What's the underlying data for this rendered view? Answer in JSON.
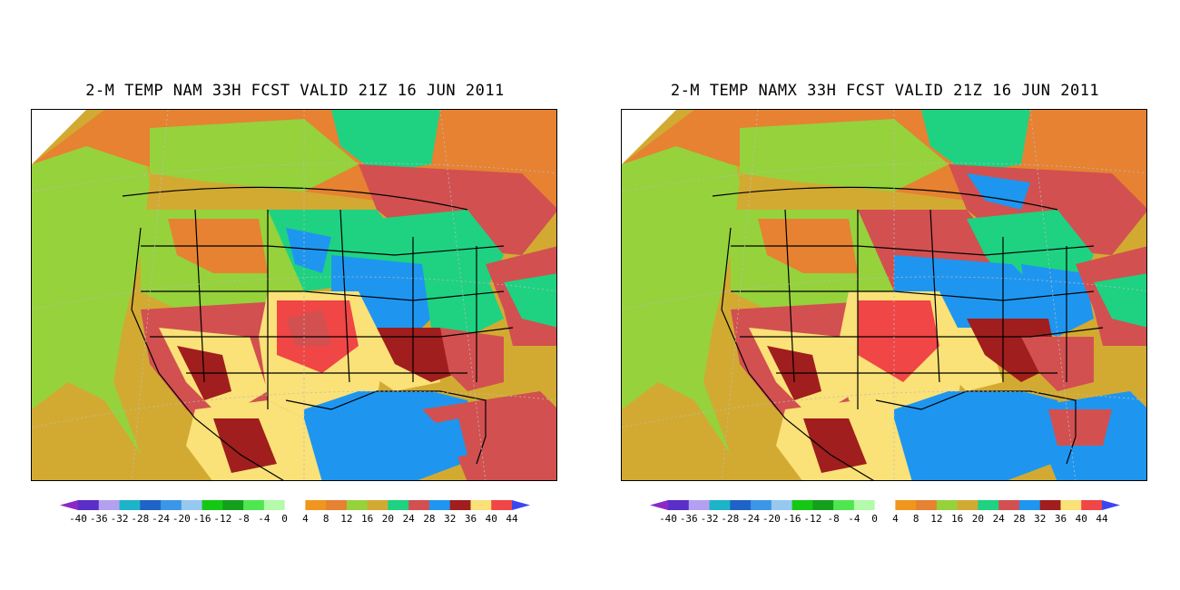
{
  "panels": [
    {
      "title": "2-M TEMP NAM 33H FCST VALID 21Z 16 JUN 2011",
      "variant": "nam"
    },
    {
      "title": "2-M TEMP NAMX 33H FCST VALID 21Z 16 JUN 2011",
      "variant": "namx"
    }
  ],
  "colorbar": {
    "colors": [
      "#5a2ec8",
      "#b4a0f0",
      "#1eb4c8",
      "#1e64c8",
      "#3c96e6",
      "#96c8f0",
      "#14c814",
      "#14a01e",
      "#50e650",
      "#b4faaa",
      "#ffffff",
      "#f0961e",
      "#e68232",
      "#96d23c",
      "#d2aa32",
      "#1ed282",
      "#d25050",
      "#1e96f0",
      "#a01e1e",
      "#fae178",
      "#f04646"
    ],
    "end_low": "#8c28c8",
    "end_high": "#3c46f0",
    "labels": [
      "-40",
      "-36",
      "-32",
      "-28",
      "-24",
      "-20",
      "-16",
      "-12",
      "-8",
      "-4",
      "0",
      "4",
      "8",
      "12",
      "16",
      "20",
      "24",
      "28",
      "32",
      "36",
      "40",
      "44"
    ]
  }
}
